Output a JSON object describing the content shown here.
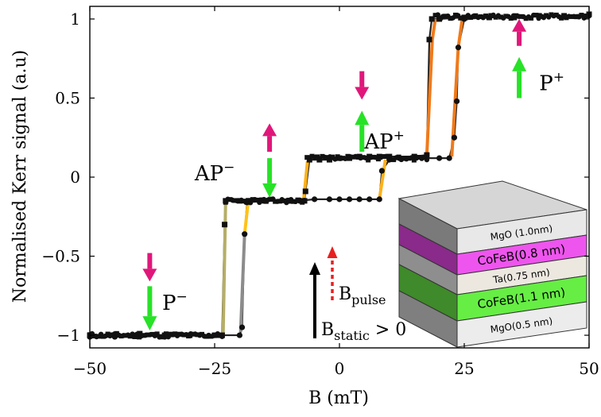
{
  "chart_data": {
    "type": "line",
    "xlabel": "B (mT)",
    "ylabel": "Normalised Kerr signal (a.u)",
    "xlim": [
      -50,
      50
    ],
    "ylim": [
      -1.08,
      1.08
    ],
    "x_ticks": [
      -50,
      -25,
      0,
      25,
      50
    ],
    "y_ticks": [
      -1,
      -0.5,
      0,
      0.5,
      1
    ],
    "x_tick_labels": [
      "−50",
      "−25",
      "0",
      "25",
      "50"
    ],
    "y_tick_labels": [
      "−1",
      "−0.5",
      "0",
      "0.5",
      "1"
    ],
    "series": [
      {
        "color": "#d9a41a",
        "x": [
          -50,
          -45,
          -40,
          -35,
          -30,
          -25,
          -23.5,
          -23,
          -22.8,
          -20,
          -15,
          -10,
          -7,
          -6.8,
          -6,
          -4,
          -2,
          0,
          2,
          4,
          6,
          8,
          10,
          15,
          17.5,
          18,
          18.5,
          20,
          25,
          30,
          35,
          40,
          45,
          50
        ],
        "y": [
          -1.0,
          -1.0,
          -0.99,
          -1.0,
          -1.0,
          -1.0,
          -1.0,
          -0.3,
          -0.15,
          -0.15,
          -0.15,
          -0.15,
          -0.15,
          -0.09,
          0.11,
          0.11,
          0.11,
          0.12,
          0.12,
          0.13,
          0.13,
          0.13,
          0.13,
          0.13,
          0.14,
          0.87,
          1.0,
          1.0,
          1.01,
          1.01,
          1.01,
          1.02,
          1.02,
          1.03
        ]
      },
      {
        "color": "#2a2a2a",
        "x": [
          50,
          45,
          40,
          35,
          30,
          25,
          23.8,
          23.5,
          23,
          22,
          20,
          15,
          12,
          10,
          8.5,
          8,
          6,
          4,
          2,
          0,
          -2,
          -5,
          -8,
          -10,
          -15,
          -18.5,
          -19,
          -19.5,
          -20,
          -25,
          -30,
          -35,
          -40,
          -45,
          -50
        ],
        "y": [
          1.03,
          1.02,
          1.02,
          1.01,
          1.01,
          1.0,
          0.82,
          0.48,
          0.25,
          0.12,
          0.12,
          0.12,
          0.12,
          0.11,
          0.04,
          -0.14,
          -0.14,
          -0.14,
          -0.14,
          -0.14,
          -0.14,
          -0.14,
          -0.15,
          -0.15,
          -0.15,
          -0.16,
          -0.36,
          -0.95,
          -1.0,
          -1.0,
          -1.0,
          -1.01,
          -1.0,
          -1.01,
          -1.01
        ]
      }
    ],
    "annotations": {
      "p_minus": "P",
      "p_minus_sup": "−",
      "ap_minus": "AP",
      "ap_minus_sup": "−",
      "ap_plus": "AP",
      "ap_plus_sup": "+",
      "p_plus": "P",
      "p_plus_sup": "+"
    },
    "colors": {
      "top_arrow": "#e0177a",
      "bottom_arrow": "#27e227",
      "pulse_arrow": "#e82020",
      "static_arrow": "#000000"
    },
    "field_labels": {
      "pulse_main": "B",
      "pulse_sub": "pulse",
      "static_main": "B",
      "static_sub": "static",
      "static_suffix": " > 0"
    },
    "stack_layers": [
      {
        "label": "MgO (1.0nm)",
        "color": "#e8e8e8"
      },
      {
        "label": "CoFeB(0.8 nm)",
        "color": "#ee55ee"
      },
      {
        "label": "Ta(0.75 nm)",
        "color": "#ece8e0"
      },
      {
        "label": "CoFeB(1.1 nm)",
        "color": "#66ee44"
      },
      {
        "label": "MgO(0.5 nm)",
        "color": "#ececec"
      }
    ]
  }
}
